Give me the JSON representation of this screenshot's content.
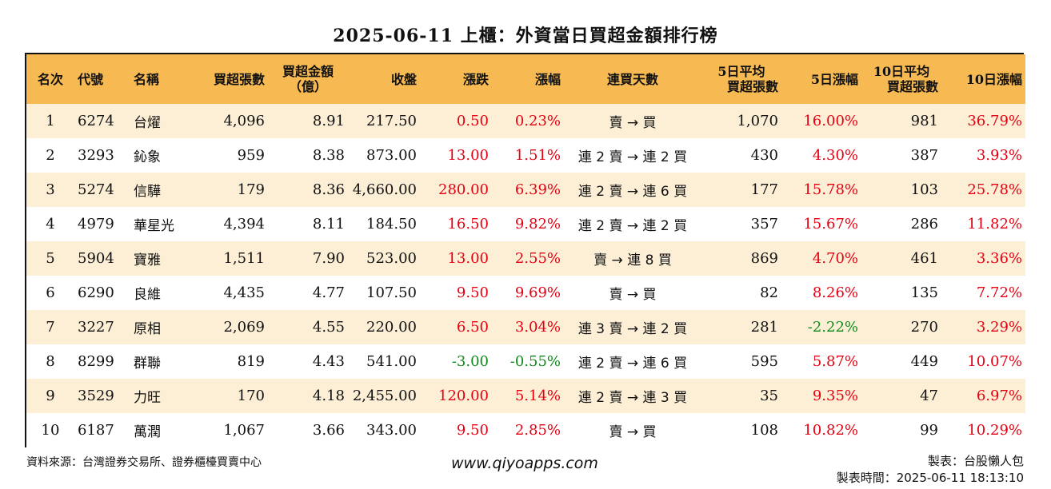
{
  "title": "2025-06-11 上櫃：外資當日買超金額排行榜",
  "headers": {
    "rank": "名次",
    "code": "代號",
    "name": "名稱",
    "buy_shares": "買超張數",
    "buy_amount_l1": "買超金額",
    "buy_amount_l2": "（億）",
    "close": "收盤",
    "change": "漲跌",
    "change_pct": "漲幅",
    "streak": "連買天數",
    "avg5_l1": "5日平均",
    "avg5_l2": "買超張數",
    "pct5": "5日漲幅",
    "avg10_l1": "10日平均",
    "avg10_l2": "買超張數",
    "pct10": "10日漲幅"
  },
  "rows": [
    {
      "rank": "1",
      "code": "6274",
      "name": "台燿",
      "buy_shares": "4,096",
      "buy_amount": "8.91",
      "close": "217.50",
      "change": "0.50",
      "change_pct": "0.23%",
      "streak": "賣 → 買",
      "avg5": "1,070",
      "pct5": "16.00%",
      "avg10": "981",
      "pct10": "36.79%",
      "change_dir": "up",
      "pct5_dir": "up",
      "pct10_dir": "up"
    },
    {
      "rank": "2",
      "code": "3293",
      "name": "鈊象",
      "buy_shares": "959",
      "buy_amount": "8.38",
      "close": "873.00",
      "change": "13.00",
      "change_pct": "1.51%",
      "streak": "連 2 賣 → 連 2 買",
      "avg5": "430",
      "pct5": "4.30%",
      "avg10": "387",
      "pct10": "3.93%",
      "change_dir": "up",
      "pct5_dir": "up",
      "pct10_dir": "up"
    },
    {
      "rank": "3",
      "code": "5274",
      "name": "信驊",
      "buy_shares": "179",
      "buy_amount": "8.36",
      "close": "4,660.00",
      "change": "280.00",
      "change_pct": "6.39%",
      "streak": "連 2 賣 → 連 6 買",
      "avg5": "177",
      "pct5": "15.78%",
      "avg10": "103",
      "pct10": "25.78%",
      "change_dir": "up",
      "pct5_dir": "up",
      "pct10_dir": "up"
    },
    {
      "rank": "4",
      "code": "4979",
      "name": "華星光",
      "buy_shares": "4,394",
      "buy_amount": "8.11",
      "close": "184.50",
      "change": "16.50",
      "change_pct": "9.82%",
      "streak": "連 2 賣 → 連 2 買",
      "avg5": "357",
      "pct5": "15.67%",
      "avg10": "286",
      "pct10": "11.82%",
      "change_dir": "up",
      "pct5_dir": "up",
      "pct10_dir": "up"
    },
    {
      "rank": "5",
      "code": "5904",
      "name": "寶雅",
      "buy_shares": "1,511",
      "buy_amount": "7.90",
      "close": "523.00",
      "change": "13.00",
      "change_pct": "2.55%",
      "streak": "賣 → 連 8 買",
      "avg5": "869",
      "pct5": "4.70%",
      "avg10": "461",
      "pct10": "3.36%",
      "change_dir": "up",
      "pct5_dir": "up",
      "pct10_dir": "up"
    },
    {
      "rank": "6",
      "code": "6290",
      "name": "良維",
      "buy_shares": "4,435",
      "buy_amount": "4.77",
      "close": "107.50",
      "change": "9.50",
      "change_pct": "9.69%",
      "streak": "賣 → 買",
      "avg5": "82",
      "pct5": "8.26%",
      "avg10": "135",
      "pct10": "7.72%",
      "change_dir": "up",
      "pct5_dir": "up",
      "pct10_dir": "up"
    },
    {
      "rank": "7",
      "code": "3227",
      "name": "原相",
      "buy_shares": "2,069",
      "buy_amount": "4.55",
      "close": "220.00",
      "change": "6.50",
      "change_pct": "3.04%",
      "streak": "連 3 賣 → 連 2 買",
      "avg5": "281",
      "pct5": "-2.22%",
      "avg10": "270",
      "pct10": "3.29%",
      "change_dir": "up",
      "pct5_dir": "down",
      "pct10_dir": "up"
    },
    {
      "rank": "8",
      "code": "8299",
      "name": "群聯",
      "buy_shares": "819",
      "buy_amount": "4.43",
      "close": "541.00",
      "change": "-3.00",
      "change_pct": "-0.55%",
      "streak": "連 2 賣 → 連 6 買",
      "avg5": "595",
      "pct5": "5.87%",
      "avg10": "449",
      "pct10": "10.07%",
      "change_dir": "down",
      "pct5_dir": "up",
      "pct10_dir": "up"
    },
    {
      "rank": "9",
      "code": "3529",
      "name": "力旺",
      "buy_shares": "170",
      "buy_amount": "4.18",
      "close": "2,455.00",
      "change": "120.00",
      "change_pct": "5.14%",
      "streak": "連 2 賣 → 連 3 買",
      "avg5": "35",
      "pct5": "9.35%",
      "avg10": "47",
      "pct10": "6.97%",
      "change_dir": "up",
      "pct5_dir": "up",
      "pct10_dir": "up"
    },
    {
      "rank": "10",
      "code": "6187",
      "name": "萬潤",
      "buy_shares": "1,067",
      "buy_amount": "3.66",
      "close": "343.00",
      "change": "9.50",
      "change_pct": "2.85%",
      "streak": "賣 → 買",
      "avg5": "108",
      "pct5": "10.82%",
      "avg10": "99",
      "pct10": "10.29%",
      "change_dir": "up",
      "pct5_dir": "up",
      "pct10_dir": "up"
    }
  ],
  "footer": {
    "source": "資料來源：台灣證券交易所、證券櫃檯買賣中心",
    "website": "www.qiyoapps.com",
    "maker": "製表：台股懶人包",
    "made_time": "製表時間：2025-06-11 18:13:10"
  },
  "colors": {
    "header_bg": "#f7b952",
    "row_alt_bg": "#fcefd6",
    "up": "#e60012",
    "down": "#0f8a1c"
  }
}
